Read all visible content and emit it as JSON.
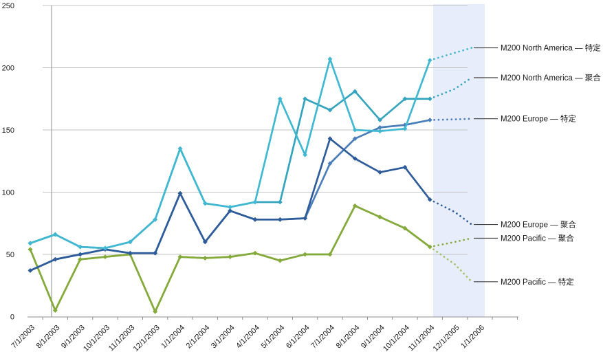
{
  "chart_data": {
    "type": "line",
    "title": "",
    "xlabel": "",
    "ylabel": "",
    "grid": true,
    "legend_position": "right-leader-lines",
    "y_axis": {
      "min": 0,
      "max": 250,
      "step": 50,
      "tick_labels": [
        "0",
        "50",
        "100",
        "150",
        "200",
        "250"
      ],
      "tick_values": [
        0,
        50,
        100,
        150,
        200,
        250
      ]
    },
    "categories": [
      "7/1/2003",
      "8/1/2003",
      "9/1/2003",
      "10/1/2003",
      "11/1/2003",
      "12/1/2003",
      "1/1/2004",
      "2/1/2004",
      "3/1/2004",
      "4/1/2004",
      "5/1/2004",
      "6/1/2004",
      "7/1/2004",
      "8/1/2004",
      "9/1/2004",
      "10/1/2004",
      "11/1/2004",
      "12/1/2005",
      "1/1/2006"
    ],
    "history_count": 17,
    "forecast_count": 2,
    "forecast_region": {
      "fill": "#E7EDFB",
      "start_category": "11/1/2004",
      "end_category": "1/1/2006"
    },
    "series": [
      {
        "key": "pacific-specific",
        "name": "M200 Pacific — 特定",
        "color": "#A2C162",
        "history": [
          54,
          5,
          46,
          48,
          50,
          4,
          48,
          47,
          48,
          51,
          45,
          50,
          50,
          89,
          80,
          71,
          56
        ],
        "forecast": [
          42,
          28
        ]
      },
      {
        "key": "pacific-aggregate",
        "name": "M200 Pacific — 聚合",
        "color": "#84AA3C",
        "history": [
          54,
          5,
          46,
          48,
          50,
          4,
          48,
          47,
          48,
          51,
          45,
          50,
          50,
          89,
          80,
          71,
          56
        ],
        "forecast": [
          60,
          63
        ]
      },
      {
        "key": "europe-specific",
        "name": "M200 Europe — 特定",
        "color": "#4A7EBB",
        "history": [
          37,
          46,
          50,
          54,
          51,
          51,
          99,
          60,
          85,
          78,
          78,
          79,
          123,
          143,
          152,
          154,
          158
        ],
        "forecast": [
          158.5,
          159
        ]
      },
      {
        "key": "europe-aggregate",
        "name": "M200 Europe — 聚合",
        "color": "#2E5C9A",
        "history": [
          37,
          46,
          50,
          54,
          51,
          51,
          99,
          60,
          85,
          78,
          78,
          79,
          143,
          127,
          116,
          120,
          94
        ],
        "forecast": [
          84,
          74
        ]
      },
      {
        "key": "north-america-aggregate",
        "name": "M200 North America — 聚合",
        "color": "#35A4BE",
        "history": [
          59,
          66,
          56,
          55,
          60,
          78,
          135,
          91,
          88,
          92,
          92,
          175,
          166,
          181,
          158,
          175,
          175
        ],
        "forecast": [
          183,
          192
        ]
      },
      {
        "key": "north-america-specific",
        "name": "M200 North America — 特定",
        "color": "#41B8D2",
        "history": [
          59,
          66,
          56,
          55,
          60,
          78,
          135,
          91,
          88,
          92,
          175,
          130,
          207,
          150,
          149,
          151,
          206
        ],
        "forecast": [
          212,
          216
        ]
      }
    ],
    "colors": {
      "gridline": "#C3C3C3",
      "axis": "#8C8C8C",
      "leader_line": "#404040",
      "label_text": "#1A1A1A",
      "forecast_shading": "#E7EDFB"
    }
  }
}
